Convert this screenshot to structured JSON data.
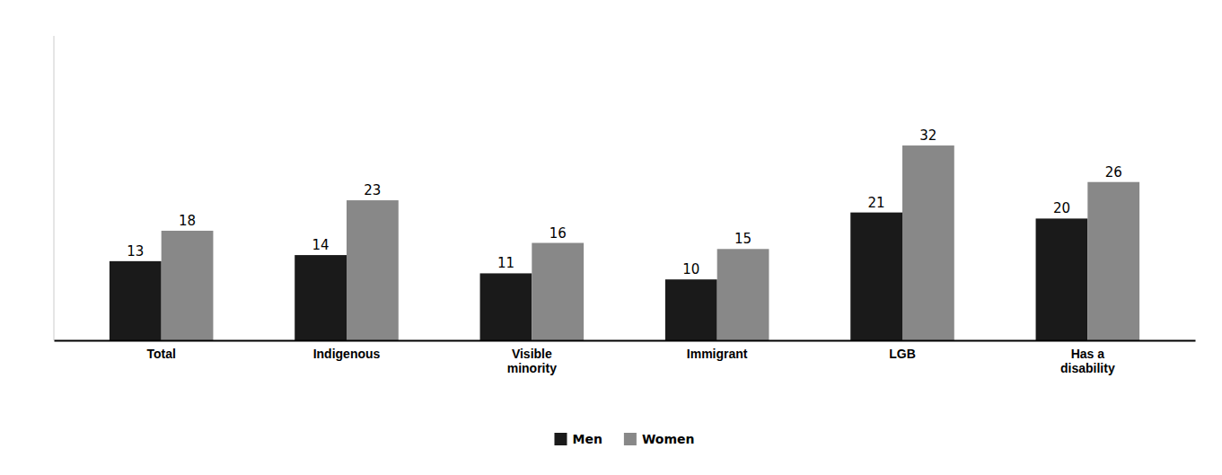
{
  "chart_data": {
    "type": "bar",
    "categories": [
      "Total",
      "Indigenous",
      "Visible\nminority",
      "Immigrant",
      "LGB",
      "Has a\ndisability"
    ],
    "series": [
      {
        "name": "Men",
        "color": "#1a1a1a",
        "values": [
          13,
          14,
          11,
          10,
          21,
          20
        ]
      },
      {
        "name": "Women",
        "color": "#888888",
        "values": [
          18,
          23,
          16,
          15,
          32,
          26
        ]
      }
    ],
    "ylim": [
      0,
      50
    ],
    "data_labels": true,
    "tick_labels": "x",
    "legend": "bottom",
    "grid": false
  }
}
